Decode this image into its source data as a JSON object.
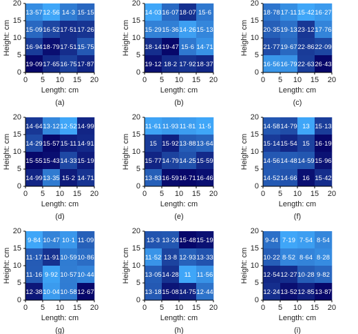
{
  "chart_data": [
    {
      "type": "heatmap",
      "caption": "(a)",
      "xlabel": "Length: cm",
      "ylabel": "Height: cm",
      "xlim": [
        0,
        20
      ],
      "ylim": [
        0,
        20
      ],
      "xticks": [
        0,
        5,
        10,
        15,
        20
      ],
      "yticks": [
        0,
        5,
        10,
        15,
        20
      ],
      "colormap": [
        "#3fa6f8",
        "#07076a"
      ],
      "values": [
        [
          13.57,
          12.56,
          14.3,
          15.15
        ],
        [
          15.09,
          16.52,
          17.51,
          17.26
        ],
        [
          16.94,
          18.79,
          17.51,
          15.75
        ],
        [
          19.09,
          17.65,
          16.75,
          17.87
        ]
      ],
      "value_labels": [
        [
          "13·57",
          "12·56",
          "14·3",
          "15·15"
        ],
        [
          "15·09",
          "16·52",
          "17·51",
          "17·26"
        ],
        [
          "16·94",
          "18·79",
          "17·51",
          "15·75"
        ],
        [
          "19·09",
          "17·65",
          "16·75",
          "17·87"
        ]
      ]
    },
    {
      "type": "heatmap",
      "caption": "(b)",
      "xlabel": "Length: cm",
      "ylabel": "Height: cm",
      "xlim": [
        0,
        20
      ],
      "ylim": [
        0,
        20
      ],
      "xticks": [
        0,
        5,
        10,
        15,
        20
      ],
      "yticks": [
        0,
        5,
        10,
        15,
        20
      ],
      "colormap": [
        "#3fa6f8",
        "#07076a"
      ],
      "values": [
        [
          14.03,
          16.07,
          18.07,
          15.6
        ],
        [
          15.29,
          15.36,
          14.26,
          15.13
        ],
        [
          18.14,
          19.47,
          15.6,
          14.71
        ],
        [
          19.12,
          18.2,
          17.92,
          18.37
        ]
      ],
      "value_labels": [
        [
          "14·03",
          "16·07",
          "18·07",
          "15·6"
        ],
        [
          "15·29",
          "15·36",
          "14·26",
          "15·13"
        ],
        [
          "18·14",
          "19·47",
          "15·6",
          "14·71"
        ],
        [
          "19·12",
          "18·2",
          "17·92",
          "18·37"
        ]
      ]
    },
    {
      "type": "heatmap",
      "caption": "(c)",
      "xlabel": "Length: cm",
      "ylabel": "Height: cm",
      "xlim": [
        0,
        20
      ],
      "ylim": [
        0,
        20
      ],
      "xticks": [
        0,
        5,
        10,
        15,
        20
      ],
      "yticks": [
        0,
        5,
        10,
        15,
        20
      ],
      "colormap": [
        "#3fa6f8",
        "#07076a"
      ],
      "values": [
        [
          18.78,
          17.11,
          15.42,
          16.27
        ],
        [
          20.35,
          19.13,
          23.12,
          17.76
        ],
        [
          21.77,
          19.67,
          22.86,
          22.09
        ],
        [
          16.56,
          16.79,
          22.63,
          26.43
        ]
      ],
      "value_labels": [
        [
          "18·78",
          "17·11",
          "15·42",
          "16·27"
        ],
        [
          "20·35",
          "19·13",
          "23·12",
          "17·76"
        ],
        [
          "21·77",
          "19·67",
          "22·86",
          "22·09"
        ],
        [
          "16·56",
          "16·79",
          "22·63",
          "26·43"
        ]
      ]
    },
    {
      "type": "heatmap",
      "caption": "(d)",
      "xlabel": "Length: cm",
      "ylabel": "Height: cm",
      "xlim": [
        0,
        20
      ],
      "ylim": [
        0,
        20
      ],
      "xticks": [
        0,
        5,
        10,
        15,
        20
      ],
      "yticks": [
        0,
        5,
        10,
        15,
        20
      ],
      "colormap": [
        "#3fa6f8",
        "#07076a"
      ],
      "values": [
        [
          14.64,
          13.12,
          12.52,
          14.99
        ],
        [
          14.29,
          15.57,
          15.11,
          14.91
        ],
        [
          15.55,
          15.43,
          14.33,
          15.19
        ],
        [
          14.99,
          13.35,
          15.2,
          14.71
        ]
      ],
      "value_labels": [
        [
          "14·64",
          "13·12",
          "12·52",
          "14·99"
        ],
        [
          "14·29",
          "15·57",
          "15·11",
          "14·91"
        ],
        [
          "15·55",
          "15·43",
          "14·33",
          "15·19"
        ],
        [
          "14·99",
          "13·35",
          "15·2",
          "14·71"
        ]
      ]
    },
    {
      "type": "heatmap",
      "caption": "(e)",
      "xlabel": "Length: cm",
      "ylabel": "Height: cm",
      "xlim": [
        0,
        20
      ],
      "ylim": [
        0,
        20
      ],
      "xticks": [
        0,
        5,
        10,
        15,
        20
      ],
      "yticks": [
        0,
        5,
        10,
        15,
        20
      ],
      "colormap": [
        "#3fa6f8",
        "#07076a"
      ],
      "values": [
        [
          11.61,
          11.93,
          11.81,
          11.5
        ],
        [
          15,
          15.92,
          13.88,
          13.64
        ],
        [
          15.77,
          14.79,
          14.25,
          15.59
        ],
        [
          13.83,
          16.59,
          16.71,
          16.46
        ]
      ],
      "value_labels": [
        [
          "11·61",
          "11·93",
          "11·81",
          "11·5"
        ],
        [
          "15",
          "15·92",
          "13·88",
          "13·64"
        ],
        [
          "15·77",
          "14·79",
          "14·25",
          "15·59"
        ],
        [
          "13·83",
          "16·59",
          "16·71",
          "16·46"
        ]
      ]
    },
    {
      "type": "heatmap",
      "caption": "(f)",
      "xlabel": "Length: cm",
      "ylabel": "Height: cm",
      "xlim": [
        0,
        20
      ],
      "ylim": [
        0,
        20
      ],
      "xticks": [
        0,
        5,
        10,
        15,
        20
      ],
      "yticks": [
        0,
        5,
        10,
        15,
        20
      ],
      "colormap": [
        "#3fa6f8",
        "#07076a"
      ],
      "values": [
        [
          14.58,
          14.79,
          13,
          15.13
        ],
        [
          15.14,
          15.54,
          15,
          16.19
        ],
        [
          14.56,
          14.48,
          14.59,
          15.96
        ],
        [
          14.52,
          14.66,
          16,
          15.42
        ]
      ],
      "value_labels": [
        [
          "14·58",
          "14·79",
          "13",
          "15·13"
        ],
        [
          "15·14",
          "15·54",
          "15",
          "16·19"
        ],
        [
          "14·56",
          "14·48",
          "14·59",
          "15·96"
        ],
        [
          "14·52",
          "14·66",
          "16",
          "15·42"
        ]
      ]
    },
    {
      "type": "heatmap",
      "caption": "(g)",
      "xlabel": "Length: cm",
      "ylabel": "Height: cm",
      "xlim": [
        0,
        20
      ],
      "ylim": [
        0,
        20
      ],
      "xticks": [
        0,
        5,
        10,
        15,
        20
      ],
      "yticks": [
        0,
        5,
        10,
        15,
        20
      ],
      "colormap": [
        "#3fa6f8",
        "#07076a"
      ],
      "values": [
        [
          9.84,
          10.47,
          10.1,
          11.09
        ],
        [
          11.17,
          11.91,
          10.59,
          10.86
        ],
        [
          11.16,
          9.92,
          10.57,
          10.44
        ],
        [
          12.38,
          10.04,
          10.58,
          12.67
        ]
      ],
      "value_labels": [
        [
          "9·84",
          "10·47",
          "10·1",
          "11·09"
        ],
        [
          "11·17",
          "11·91",
          "10·59",
          "10·86"
        ],
        [
          "11·16",
          "9·92",
          "10·57",
          "10·44"
        ],
        [
          "12·38",
          "10·04",
          "10·58",
          "12·67"
        ]
      ]
    },
    {
      "type": "heatmap",
      "caption": "(h)",
      "xlabel": "Length: cm",
      "ylabel": "Height: cm",
      "xlim": [
        0,
        20
      ],
      "ylim": [
        0,
        20
      ],
      "xticks": [
        0,
        5,
        10,
        15,
        20
      ],
      "yticks": [
        0,
        5,
        10,
        15,
        20
      ],
      "colormap": [
        "#3fa6f8",
        "#07076a"
      ],
      "values": [
        [
          13.3,
          13.24,
          15.48,
          15.19
        ],
        [
          11.52,
          13.8,
          12.93,
          13.33
        ],
        [
          13.05,
          14.28,
          11,
          11.56
        ],
        [
          13.18,
          15.08,
          14.75,
          12.44
        ]
      ],
      "value_labels": [
        [
          "13·3",
          "13·24",
          "15·48",
          "15·19"
        ],
        [
          "11·52",
          "13·8",
          "12·93",
          "13·33"
        ],
        [
          "13·05",
          "14·28",
          "11",
          "11·56"
        ],
        [
          "13·18",
          "15·08",
          "14·75",
          "12·44"
        ]
      ]
    },
    {
      "type": "heatmap",
      "caption": "(i)",
      "xlabel": "Length: cm",
      "ylabel": "Height: cm",
      "xlim": [
        0,
        20
      ],
      "ylim": [
        0,
        20
      ],
      "xticks": [
        0,
        5,
        10,
        15,
        20
      ],
      "yticks": [
        0,
        5,
        10,
        15,
        20
      ],
      "colormap": [
        "#3fa6f8",
        "#07076a"
      ],
      "values": [
        [
          9.44,
          7.19,
          7.54,
          8.54
        ],
        [
          10.22,
          8.52,
          8.64,
          8.28
        ],
        [
          12.54,
          12.27,
          10.28,
          9.82
        ],
        [
          12.24,
          13.52,
          12.85,
          13.87
        ]
      ],
      "value_labels": [
        [
          "9·44",
          "7·19",
          "7·54",
          "8·54"
        ],
        [
          "10·22",
          "8·52",
          "8·64",
          "8·28"
        ],
        [
          "12·54",
          "12·27",
          "10·28",
          "9·82"
        ],
        [
          "12·24",
          "13·52",
          "12·85",
          "13·87"
        ]
      ]
    }
  ]
}
